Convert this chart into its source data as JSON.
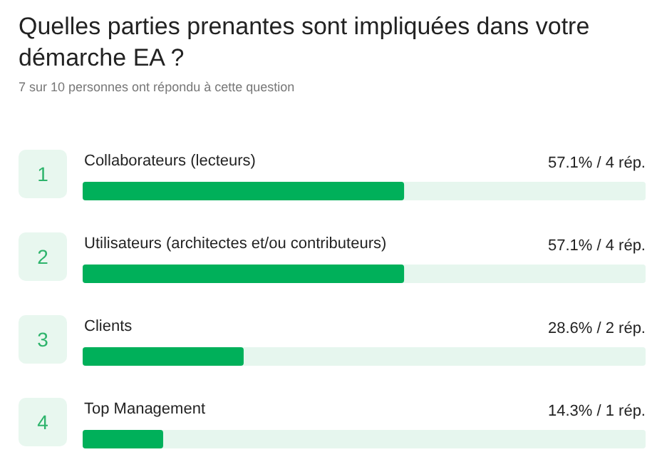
{
  "chart_data": {
    "type": "bar",
    "orientation": "horizontal",
    "title": "Quelles parties prenantes sont impliquées dans votre démarche EA ?",
    "subtitle": "7 sur 10 personnes ont répondu à cette question",
    "categories": [
      "Collaborateurs (lecteurs)",
      "Utilisateurs (architectes et/ou contributeurs)",
      "Clients",
      "Top Management"
    ],
    "values": [
      57.1,
      57.1,
      28.6,
      14.3
    ],
    "value_labels": [
      "57.1% / 4 rép.",
      "57.1% / 4 rép.",
      "28.6% / 2 rép.",
      "14.3% / 1 rép."
    ],
    "color": "#00b05a",
    "xlim": [
      0,
      100
    ],
    "tick_labels": false,
    "annotations": [
      "1",
      "2",
      "3",
      "4"
    ]
  }
}
